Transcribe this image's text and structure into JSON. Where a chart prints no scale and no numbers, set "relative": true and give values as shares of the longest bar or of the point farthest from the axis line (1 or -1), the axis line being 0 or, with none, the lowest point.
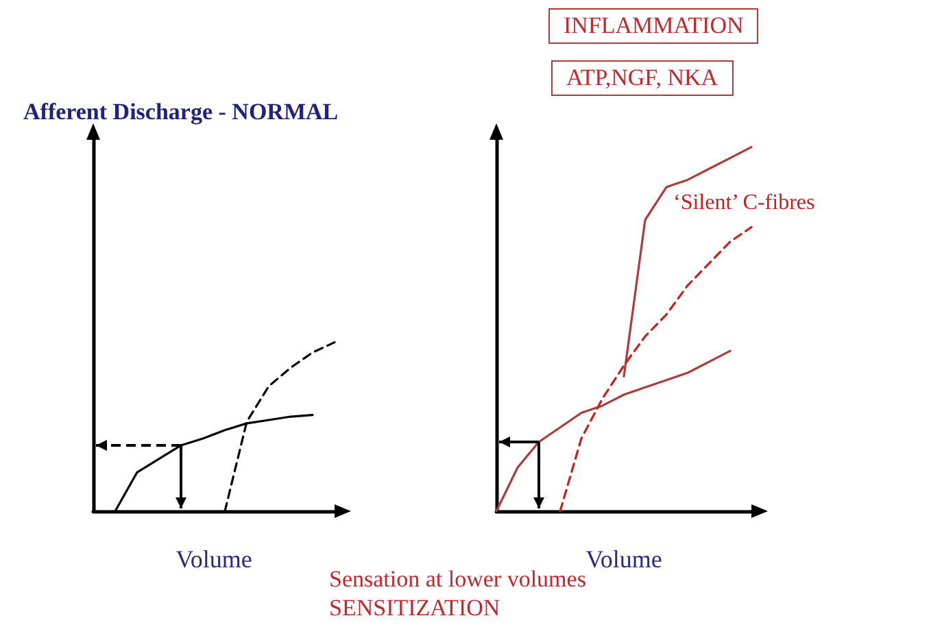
{
  "chart_data": [
    {
      "type": "line",
      "title": "Afferent Discharge - NORMAL",
      "xlabel": "Volume",
      "relative": true,
      "marker": "none",
      "categories": [
        null,
        null,
        null,
        null,
        null,
        null,
        null,
        null,
        null,
        null,
        null,
        null
      ],
      "series": [
        {
          "color": "#000000",
          "line_style": "solid",
          "values": [
            null,
            0,
            0.23,
            0.31,
            0.39,
            0.43,
            0.48,
            0.52,
            0.54,
            0.56,
            0.57,
            null
          ]
        },
        {
          "color": "#000000",
          "line_style": "dashed",
          "values": [
            null,
            null,
            null,
            null,
            null,
            null,
            0,
            0.53,
            0.74,
            0.85,
            0.94,
            1
          ]
        }
      ]
    },
    {
      "type": "line",
      "xlabel": "Volume",
      "relative": true,
      "marker": "none",
      "annotations": [
        "INFLAMMATION",
        "ATP,NGF, NKA",
        "Sensation at lower volumes",
        "SENSITIZATION"
      ],
      "categories": [
        null,
        null,
        null,
        null,
        null,
        null,
        null,
        null,
        null,
        null,
        null,
        null,
        null
      ],
      "series": [
        {
          "color": "#b03a3a",
          "line_style": "solid",
          "values": [
            0,
            0.12,
            0.19,
            0.23,
            0.27,
            0.29,
            0.32,
            0.34,
            0.36,
            0.38,
            0.41,
            0.44,
            null
          ]
        },
        {
          "color": "#b03a3a",
          "line_style": "solid",
          "values": [
            null,
            null,
            null,
            null,
            null,
            null,
            0.37,
            0.8,
            0.89,
            0.91,
            0.94,
            0.97,
            1
          ]
        },
        {
          "name": "‘Silent’ C-fibres",
          "color": "#c81e1e",
          "line_style": "dashed",
          "values": [
            null,
            null,
            null,
            0,
            0.2,
            0.31,
            0.4,
            0.48,
            0.54,
            0.62,
            0.68,
            0.74,
            0.78
          ]
        }
      ]
    }
  ]
}
